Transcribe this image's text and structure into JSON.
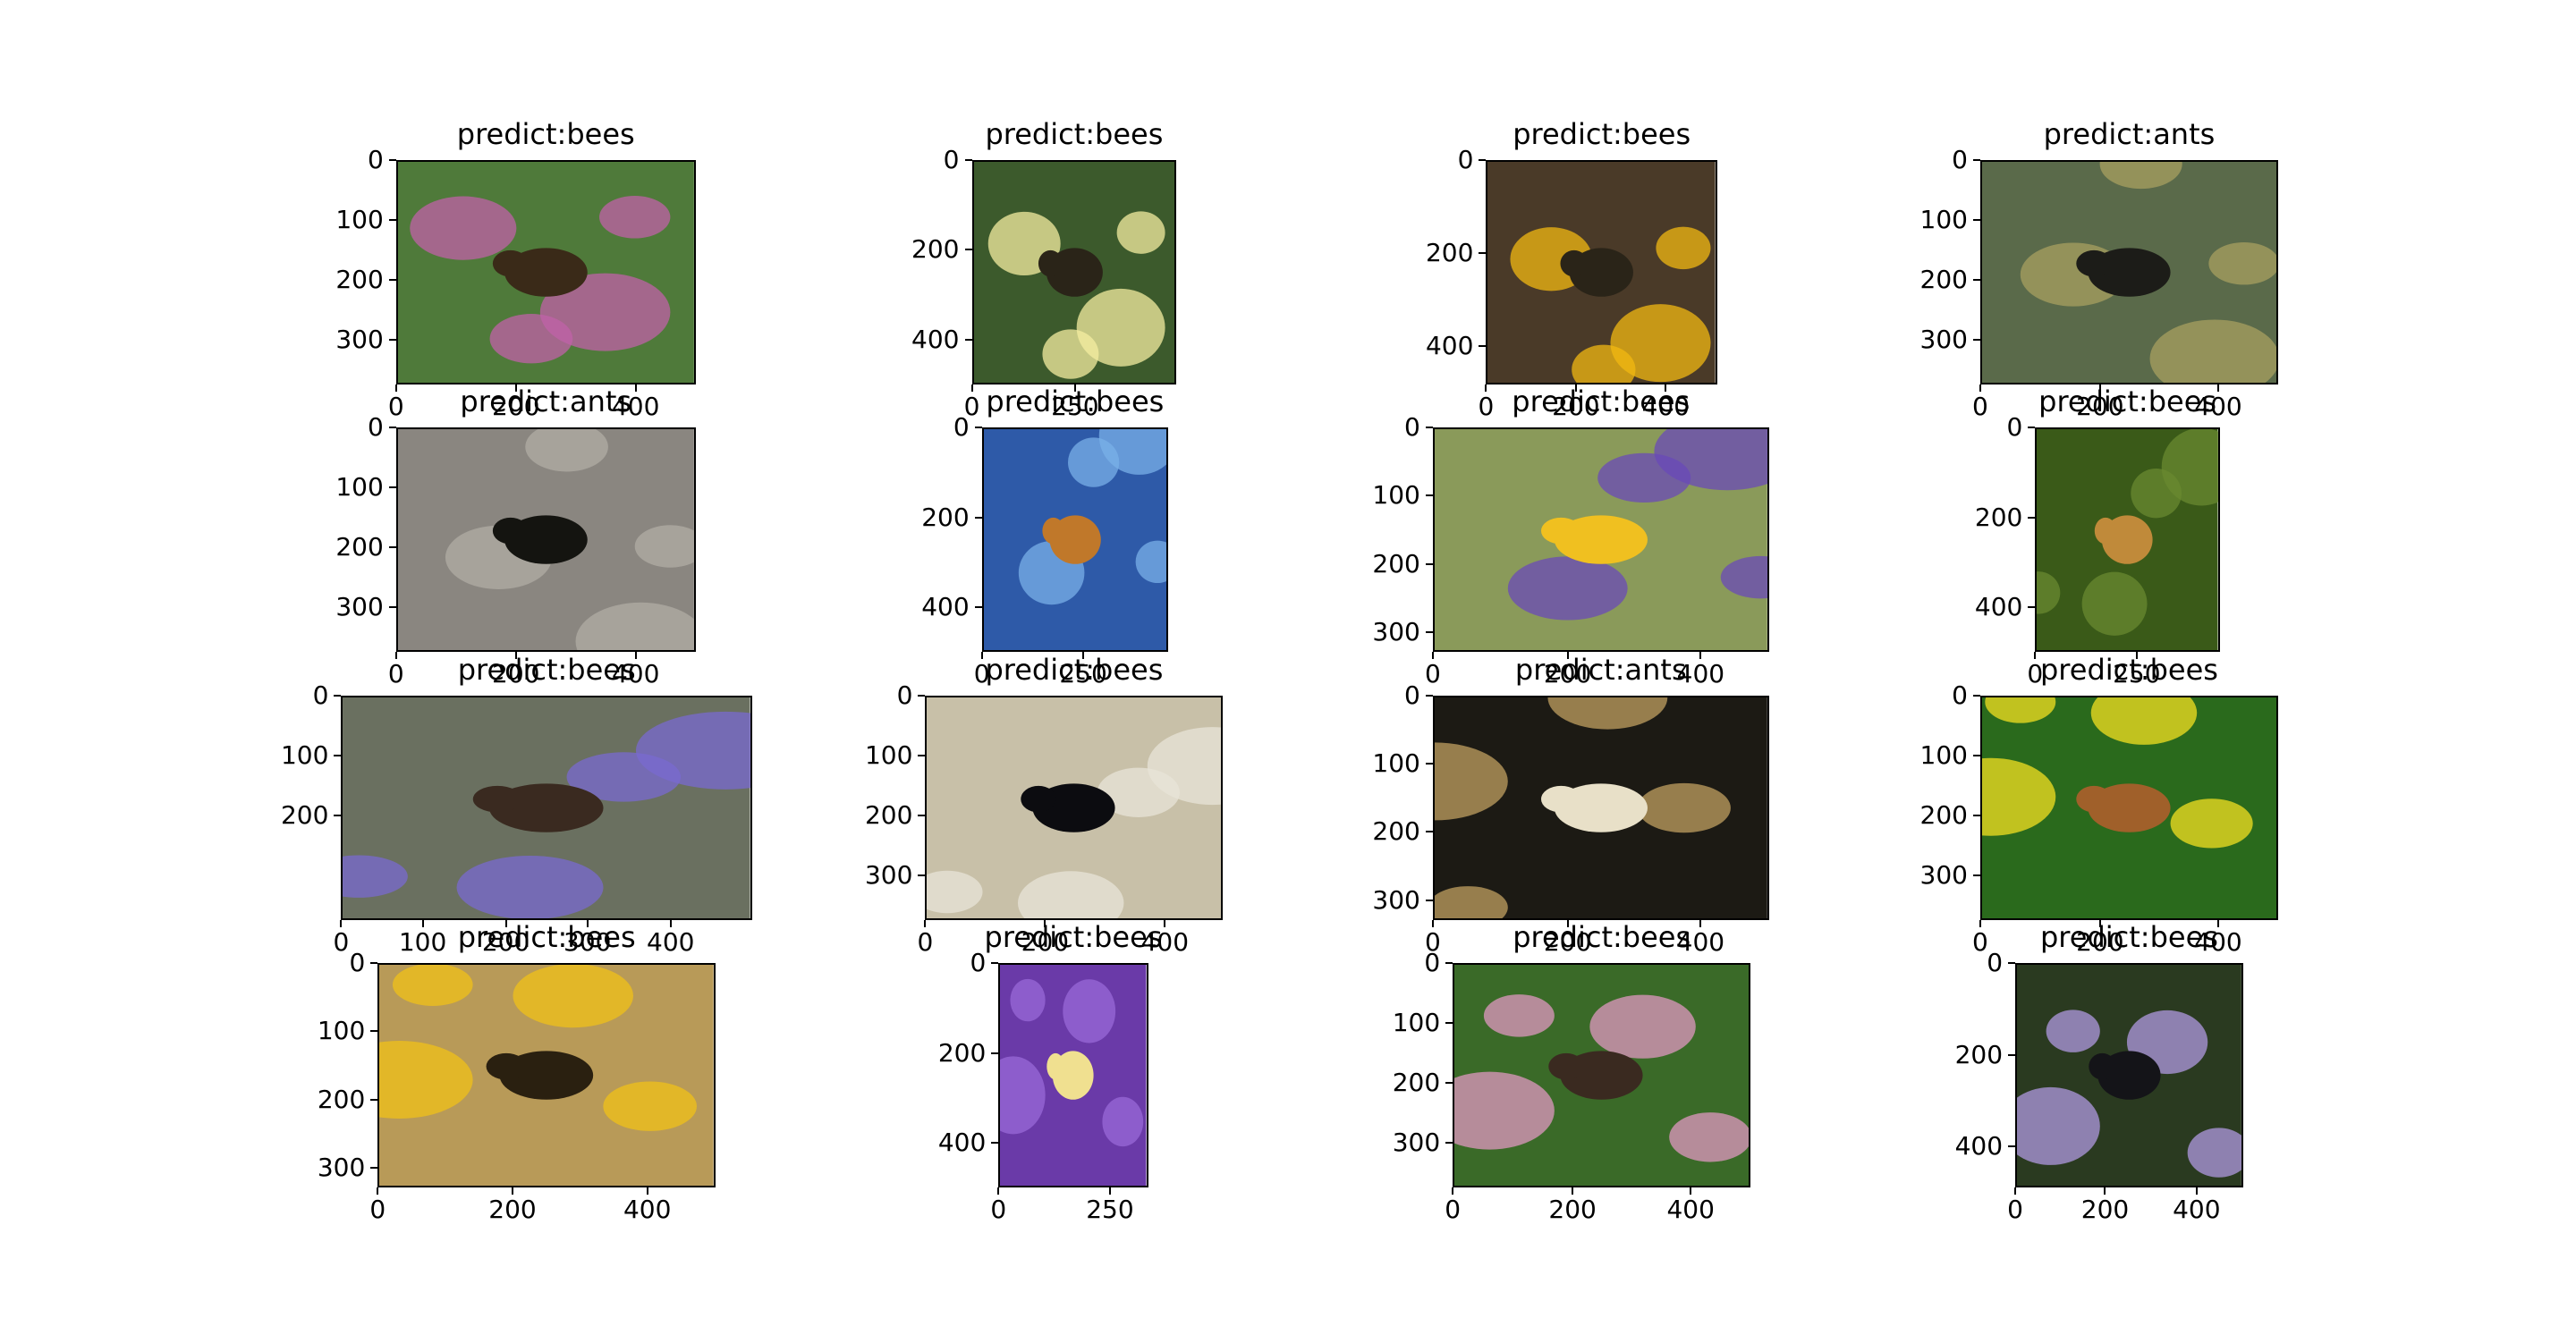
{
  "figure": {
    "panels": [
      {
        "title": "predict:bees",
        "xticks": [
          "0",
          "200",
          "400"
        ],
        "yticks": [
          "0",
          "100",
          "200",
          "300"
        ],
        "bg": "#4f7a3a",
        "accent": "#c061a8",
        "subject": "#3a2a18"
      },
      {
        "title": "predict:bees",
        "xticks": [
          "0",
          "250"
        ],
        "yticks": [
          "0",
          "200",
          "400"
        ],
        "bg": "#3c5a2c",
        "accent": "#f4eea0",
        "subject": "#2a2418"
      },
      {
        "title": "predict:bees",
        "xticks": [
          "0",
          "200",
          "400"
        ],
        "yticks": [
          "0",
          "200",
          "400"
        ],
        "bg": "#4a3a28",
        "accent": "#f2b812",
        "subject": "#2a2418"
      },
      {
        "title": "predict:ants",
        "xticks": [
          "0",
          "200",
          "400"
        ],
        "yticks": [
          "0",
          "100",
          "200",
          "300"
        ],
        "bg": "#5a6a4a",
        "accent": "#a8a060",
        "subject": "#1c1c18"
      },
      {
        "title": "predict:ants",
        "xticks": [
          "0",
          "200",
          "400"
        ],
        "yticks": [
          "0",
          "100",
          "200",
          "300"
        ],
        "bg": "#8a8680",
        "accent": "#b0aca4",
        "subject": "#141410"
      },
      {
        "title": "predict:bees",
        "xticks": [
          "0",
          "250"
        ],
        "yticks": [
          "0",
          "200",
          "400"
        ],
        "bg": "#2e5aa8",
        "accent": "#7ab0e8",
        "subject": "#c0782a"
      },
      {
        "title": "predict:bees",
        "xticks": [
          "0",
          "200",
          "400"
        ],
        "yticks": [
          "0",
          "100",
          "200",
          "300"
        ],
        "bg": "#8a9a5a",
        "accent": "#6a4ab8",
        "subject": "#f0c020"
      },
      {
        "title": "predict:bees",
        "xticks": [
          "0",
          "250"
        ],
        "yticks": [
          "0",
          "200",
          "400"
        ],
        "bg": "#3a5a18",
        "accent": "#6a8a30",
        "subject": "#c08a3a"
      },
      {
        "title": "predict:bees",
        "xticks": [
          "0",
          "100",
          "200",
          "300",
          "400"
        ],
        "yticks": [
          "0",
          "100",
          "200"
        ],
        "bg": "#6a7060",
        "accent": "#7a6ad0",
        "subject": "#3a2a20"
      },
      {
        "title": "predict:bees",
        "xticks": [
          "0",
          "200",
          "400"
        ],
        "yticks": [
          "0",
          "100",
          "200",
          "300"
        ],
        "bg": "#c8c0a8",
        "accent": "#e8e4d8",
        "subject": "#0c0c10"
      },
      {
        "title": "predict:ants",
        "xticks": [
          "0",
          "200",
          "400"
        ],
        "yticks": [
          "0",
          "100",
          "200",
          "300"
        ],
        "bg": "#1c1a14",
        "accent": "#c0a060",
        "subject": "#e8e0c8"
      },
      {
        "title": "predict:bees",
        "xticks": [
          "0",
          "200",
          "400"
        ],
        "yticks": [
          "0",
          "100",
          "200",
          "300"
        ],
        "bg": "#2a6a1c",
        "accent": "#f4e020",
        "subject": "#a0602a"
      },
      {
        "title": "predict:bees",
        "xticks": [
          "0",
          "200",
          "400"
        ],
        "yticks": [
          "0",
          "100",
          "200",
          "300"
        ],
        "bg": "#b89a58",
        "accent": "#f0c018",
        "subject": "#2a2010"
      },
      {
        "title": "predict:bees",
        "xticks": [
          "0",
          "250"
        ],
        "yticks": [
          "0",
          "200",
          "400"
        ],
        "bg": "#6a3aa8",
        "accent": "#9a6ad8",
        "subject": "#f0e090"
      },
      {
        "title": "predict:bees",
        "xticks": [
          "0",
          "200",
          "400"
        ],
        "yticks": [
          "0",
          "100",
          "200",
          "300"
        ],
        "bg": "#3a6a28",
        "accent": "#e098c0",
        "subject": "#3a2a20"
      },
      {
        "title": "predict:bees",
        "xticks": [
          "0",
          "200",
          "400"
        ],
        "yticks": [
          "0",
          "200",
          "400"
        ],
        "bg": "#2a3a20",
        "accent": "#b09ae0",
        "subject": "#141418"
      }
    ]
  }
}
